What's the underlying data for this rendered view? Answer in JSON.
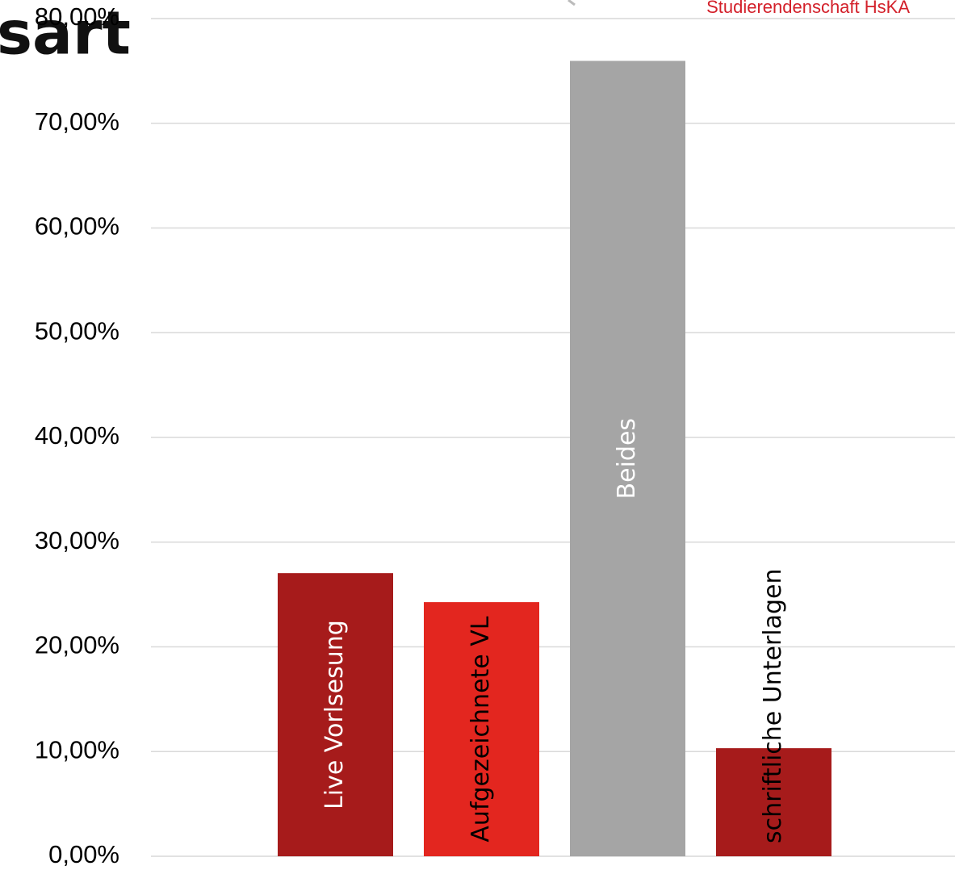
{
  "chart_data": {
    "type": "bar",
    "title": "sart",
    "subtitle": "Studierendenschaft HsKA",
    "categories": [
      "Live Vorlsesung",
      "Aufgezeichnete VL",
      "Beides",
      "schriftliche Unterlagen"
    ],
    "values": [
      27.04,
      24.27,
      75.96,
      10.32
    ],
    "colors": [
      "#a61b1b",
      "#e3261f",
      "#a5a5a5",
      "#a61b1b"
    ],
    "label_colors": [
      "#ffffff",
      "#000000",
      "#ffffff",
      "#000000"
    ],
    "ylim": [
      0,
      80
    ],
    "yticks": [
      {
        "value": 0,
        "label": "0,00%"
      },
      {
        "value": 10,
        "label": "10,00%"
      },
      {
        "value": 20,
        "label": "20,00%"
      },
      {
        "value": 30,
        "label": "30,00%"
      },
      {
        "value": 40,
        "label": "40,00%"
      },
      {
        "value": 50,
        "label": "50,00%"
      },
      {
        "value": 60,
        "label": "60,00%"
      },
      {
        "value": 70,
        "label": "70,00%"
      },
      {
        "value": 80,
        "label": "80,00%"
      }
    ],
    "grid": true
  }
}
